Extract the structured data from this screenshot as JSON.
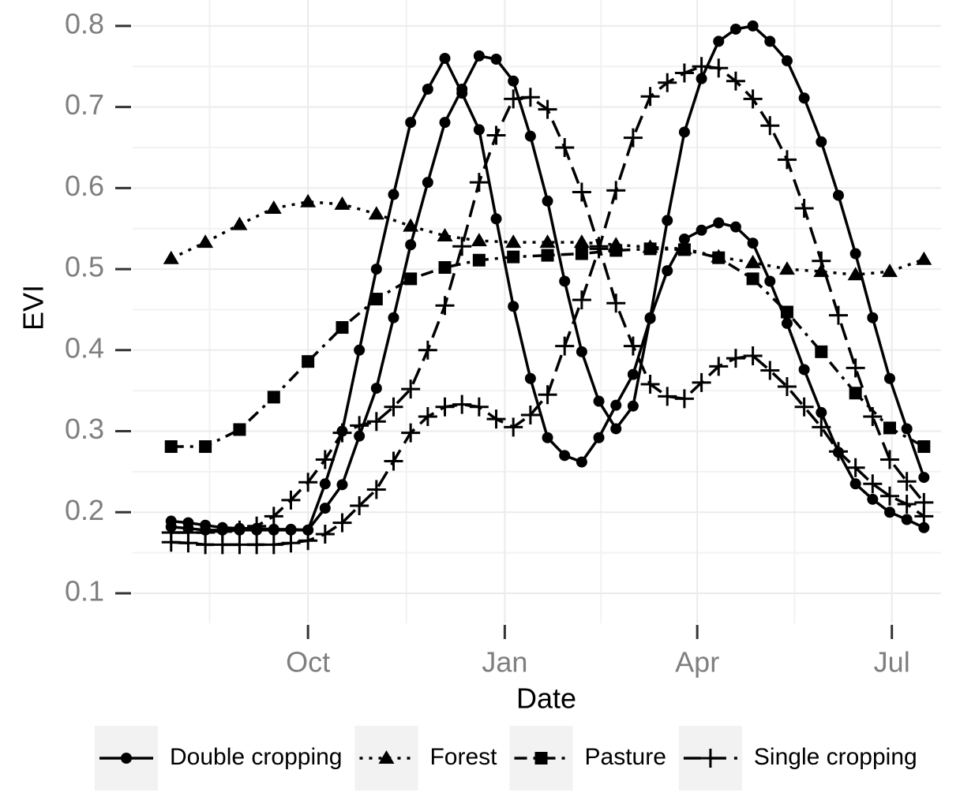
{
  "chart_data": {
    "type": "line",
    "x_label": "Date",
    "y_label": "EVI",
    "xlim": [
      -82,
      296
    ],
    "xticks": [
      {
        "value": 0,
        "label": "Oct"
      },
      {
        "value": 92,
        "label": "Jan"
      },
      {
        "value": 182,
        "label": "Apr"
      },
      {
        "value": 273,
        "label": "Jul"
      }
    ],
    "ylim": [
      0.063,
      0.832
    ],
    "yticks": [
      0.1,
      0.2,
      0.3,
      0.4,
      0.5,
      0.6,
      0.7,
      0.8
    ],
    "grid": true,
    "legend": "bottom",
    "series": [
      {
        "name": "Double cropping",
        "color": "#000000",
        "dash": "solid",
        "marker": "circle",
        "x": [
          -64,
          -56,
          -48,
          -40,
          -32,
          -24,
          -16,
          -8,
          0,
          8,
          16,
          24,
          32,
          40,
          48,
          56,
          64,
          72,
          80,
          88,
          96,
          104,
          112,
          120,
          128,
          136,
          144,
          152,
          160,
          168,
          176,
          184,
          192,
          200,
          208,
          216,
          224,
          232,
          240,
          248,
          256,
          264,
          272,
          280,
          288
        ],
        "values": [
          0.189,
          0.187,
          0.184,
          0.181,
          0.18,
          0.18,
          0.179,
          0.179,
          0.178,
          0.235,
          0.3,
          0.4,
          0.5,
          0.592,
          0.681,
          0.722,
          0.76,
          0.717,
          0.672,
          0.562,
          0.454,
          0.365,
          0.292,
          0.27,
          0.262,
          0.292,
          0.332,
          0.37,
          0.439,
          0.498,
          0.537,
          0.548,
          0.557,
          0.552,
          0.532,
          0.485,
          0.433,
          0.376,
          0.323,
          0.274,
          0.235,
          0.216,
          0.2,
          0.191,
          0.181
        ]
      },
      {
        "name": "Double cropping",
        "color": "#000000",
        "dash": "solid",
        "marker": "circle",
        "x": [
          -64,
          -56,
          -48,
          -40,
          -32,
          -24,
          -16,
          -8,
          0,
          8,
          16,
          24,
          32,
          40,
          48,
          56,
          64,
          72,
          80,
          88,
          96,
          104,
          112,
          120,
          128,
          136,
          144,
          152,
          160,
          168,
          176,
          184,
          192,
          200,
          208,
          216,
          224,
          232,
          240,
          248,
          256,
          264,
          272,
          280,
          288
        ],
        "values": [
          0.182,
          0.18,
          0.178,
          0.178,
          0.178,
          0.178,
          0.178,
          0.178,
          0.178,
          0.205,
          0.234,
          0.294,
          0.353,
          0.44,
          0.53,
          0.607,
          0.681,
          0.722,
          0.763,
          0.759,
          0.732,
          0.664,
          0.584,
          0.485,
          0.398,
          0.337,
          0.303,
          0.331,
          0.44,
          0.56,
          0.669,
          0.735,
          0.781,
          0.796,
          0.8,
          0.781,
          0.757,
          0.711,
          0.657,
          0.591,
          0.519,
          0.44,
          0.365,
          0.303,
          0.243
        ]
      },
      {
        "name": "Forest",
        "color": "#000000",
        "dash": "dotted",
        "marker": "triangle",
        "x": [
          -64,
          -48,
          -32,
          -16,
          0,
          16,
          32,
          48,
          64,
          80,
          96,
          112,
          128,
          144,
          160,
          176,
          192,
          208,
          224,
          240,
          256,
          272,
          288
        ],
        "values": [
          0.513,
          0.533,
          0.555,
          0.575,
          0.583,
          0.58,
          0.568,
          0.553,
          0.541,
          0.535,
          0.533,
          0.533,
          0.533,
          0.53,
          0.527,
          0.525,
          0.515,
          0.508,
          0.5,
          0.497,
          0.493,
          0.497,
          0.512
        ]
      },
      {
        "name": "Pasture",
        "color": "#000000",
        "dash": "dotdash",
        "marker": "square",
        "x": [
          -64,
          -48,
          -32,
          -16,
          0,
          16,
          32,
          48,
          64,
          80,
          96,
          112,
          128,
          144,
          160,
          176,
          192,
          208,
          224,
          240,
          256,
          272,
          288
        ],
        "values": [
          0.281,
          0.281,
          0.302,
          0.342,
          0.386,
          0.428,
          0.463,
          0.488,
          0.502,
          0.511,
          0.515,
          0.517,
          0.519,
          0.523,
          0.525,
          0.524,
          0.514,
          0.488,
          0.447,
          0.398,
          0.347,
          0.304,
          0.281
        ]
      },
      {
        "name": "Single cropping",
        "color": "#000000",
        "dash": "longdash",
        "marker": "plus",
        "x": [
          -64,
          -56,
          -48,
          -40,
          -32,
          -24,
          -16,
          -8,
          0,
          8,
          16,
          24,
          32,
          40,
          48,
          56,
          64,
          72,
          80,
          88,
          96,
          104,
          112,
          120,
          128,
          136,
          144,
          152,
          160,
          168,
          176,
          184,
          192,
          200,
          208,
          216,
          224,
          232,
          240,
          248,
          256,
          264,
          272,
          280,
          288
        ],
        "values": [
          0.163,
          0.162,
          0.16,
          0.16,
          0.16,
          0.16,
          0.16,
          0.162,
          0.165,
          0.173,
          0.187,
          0.208,
          0.228,
          0.263,
          0.298,
          0.318,
          0.33,
          0.333,
          0.33,
          0.315,
          0.305,
          0.32,
          0.345,
          0.405,
          0.462,
          0.525,
          0.597,
          0.662,
          0.713,
          0.73,
          0.742,
          0.75,
          0.748,
          0.732,
          0.71,
          0.677,
          0.635,
          0.575,
          0.51,
          0.443,
          0.378,
          0.318,
          0.265,
          0.238,
          0.212
        ]
      },
      {
        "name": "Single cropping",
        "color": "#000000",
        "dash": "longdash",
        "marker": "plus",
        "x": [
          -64,
          -56,
          -48,
          -40,
          -32,
          -24,
          -16,
          -8,
          0,
          8,
          16,
          24,
          32,
          40,
          48,
          56,
          64,
          72,
          80,
          88,
          96,
          104,
          112,
          120,
          128,
          136,
          144,
          152,
          160,
          168,
          176,
          184,
          192,
          200,
          208,
          216,
          224,
          232,
          240,
          248,
          256,
          264,
          272,
          280,
          288
        ],
        "values": [
          0.175,
          0.175,
          0.175,
          0.176,
          0.178,
          0.183,
          0.195,
          0.215,
          0.237,
          0.265,
          0.298,
          0.307,
          0.312,
          0.33,
          0.352,
          0.4,
          0.455,
          0.528,
          0.607,
          0.665,
          0.71,
          0.712,
          0.697,
          0.65,
          0.595,
          0.528,
          0.458,
          0.405,
          0.358,
          0.343,
          0.34,
          0.36,
          0.38,
          0.39,
          0.393,
          0.375,
          0.355,
          0.33,
          0.305,
          0.275,
          0.255,
          0.235,
          0.22,
          0.21,
          0.195
        ]
      }
    ]
  }
}
